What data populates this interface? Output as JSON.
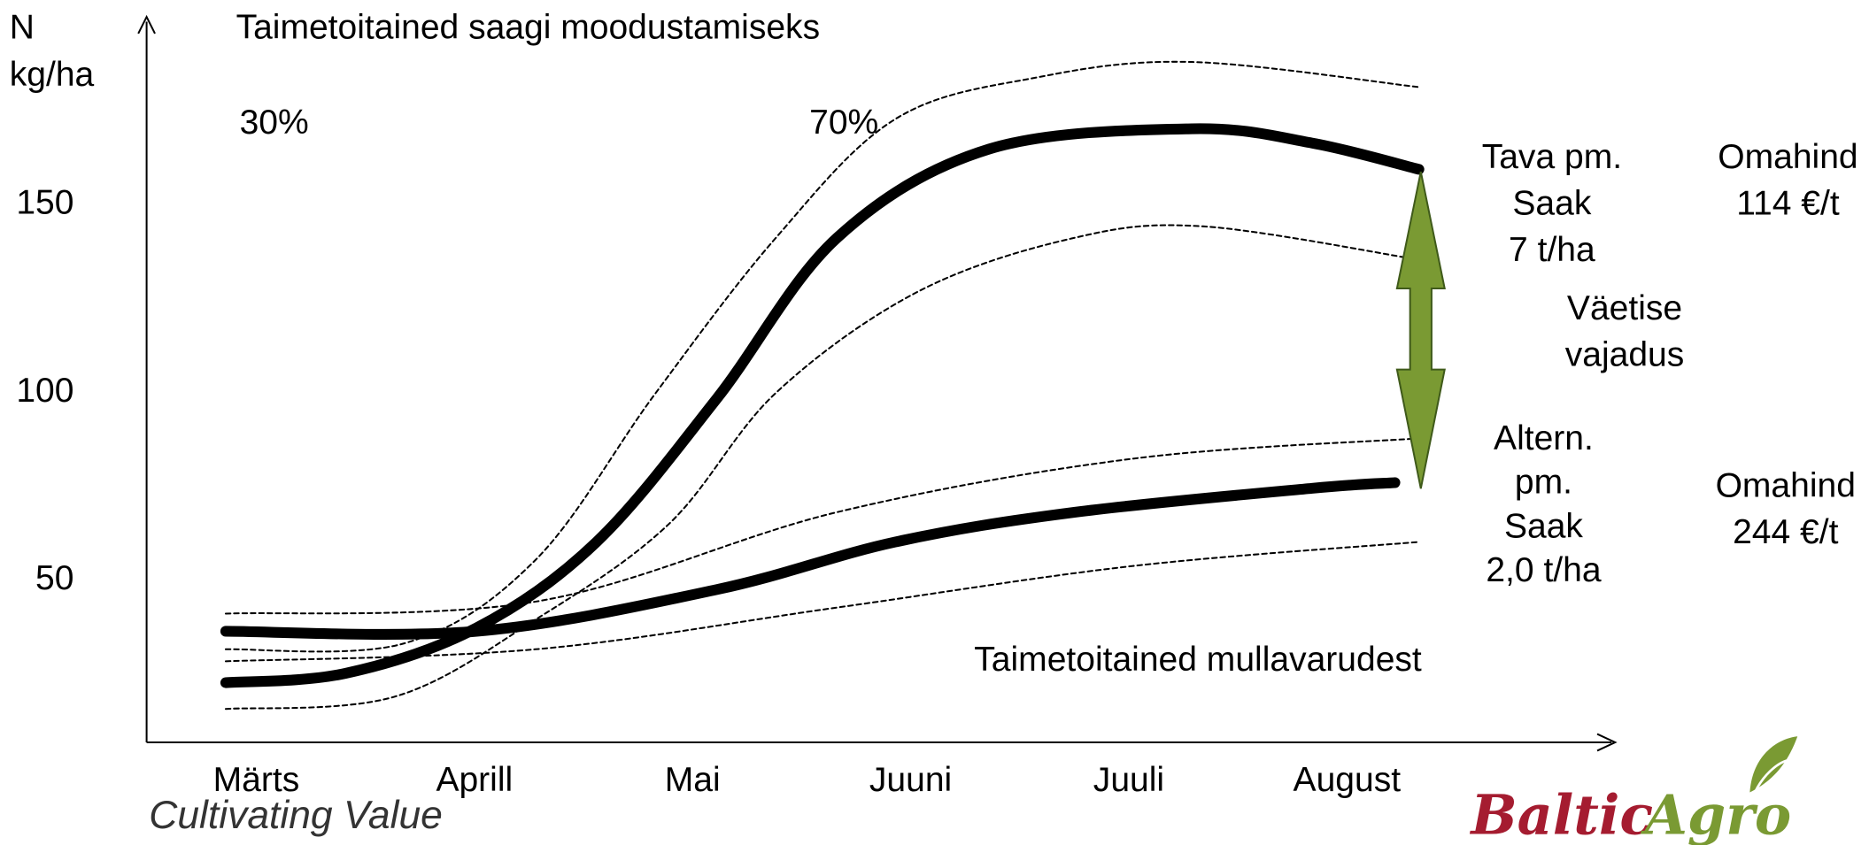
{
  "chart_data": {
    "type": "line",
    "title": "Taimetoitained saagi moodustamiseks",
    "y_label": [
      "N",
      "kg/ha"
    ],
    "categories": [
      "Märts",
      "Aprill",
      "Mai",
      "Juuni",
      "Juuli",
      "August"
    ],
    "xlim": [
      -0.5,
      6.2
    ],
    "ylim": [
      6,
      199
    ],
    "yticks": [
      50,
      100,
      150
    ],
    "series": [
      {
        "color": "#000000",
        "dashed": false,
        "x": [
          -0.14,
          0.41,
          1.01,
          1.56,
          2.11,
          2.66,
          3.36,
          4.29,
          4.84,
          5.33
        ],
        "values": [
          21.9,
          24.4,
          36.5,
          59.4,
          97.5,
          140.3,
          164.1,
          169.5,
          165.7,
          158.7
        ]
      },
      {
        "color": "#000000",
        "dashed": true,
        "x": [
          -0.14,
          0.68,
          1.28,
          1.83,
          2.38,
          2.93,
          3.58,
          4.29,
          5.33
        ],
        "values": [
          30.8,
          32.4,
          54.6,
          99.0,
          140.3,
          172.1,
          183.2,
          187.3,
          180.6
        ]
      },
      {
        "color": "#000000",
        "dashed": true,
        "x": [
          -0.14,
          0.63,
          1.28,
          1.89,
          2.38,
          3.03,
          3.74,
          4.34,
          5.33
        ],
        "values": [
          14.9,
          18.1,
          38.7,
          64.1,
          99.0,
          126.0,
          140.3,
          143.5,
          134.6
        ]
      },
      {
        "color": "#000000",
        "dashed": false,
        "x": [
          -0.14,
          1.01,
          2.11,
          2.93,
          3.75,
          4.84,
          5.22
        ],
        "values": [
          35.6,
          35.6,
          46.7,
          59.4,
          67.3,
          73.7,
          75.2
        ]
      },
      {
        "color": "#000000",
        "dashed": true,
        "x": [
          -0.14,
          1.28,
          2.66,
          4.02,
          5.33
        ],
        "values": [
          40.3,
          43.5,
          67.3,
          81.6,
          87.0
        ]
      },
      {
        "color": "#000000",
        "dashed": true,
        "x": [
          -0.14,
          1.28,
          2.66,
          4.02,
          5.33
        ],
        "values": [
          27.6,
          30.8,
          41.9,
          53.0,
          59.4
        ]
      }
    ],
    "annotations": [
      {
        "lines": [
          "30%"
        ]
      },
      {
        "lines": [
          "70%"
        ]
      },
      {
        "lines": [
          "Tava pm.",
          "Saak",
          "7 t/ha"
        ]
      },
      {
        "lines": [
          "Omahind",
          "114 €/t"
        ]
      },
      {
        "lines": [
          "Väetise",
          "vajadus"
        ]
      },
      {
        "lines": [
          "Altern.",
          "pm.",
          "Saak",
          "2,0 t/ha"
        ]
      },
      {
        "lines": [
          "Omahind",
          "244 €/t"
        ]
      },
      {
        "lines": [
          "Taimetoitained mullavarudest"
        ]
      }
    ],
    "footer": "Cultivating Value",
    "logo": [
      "Baltic",
      "Agro"
    ]
  }
}
